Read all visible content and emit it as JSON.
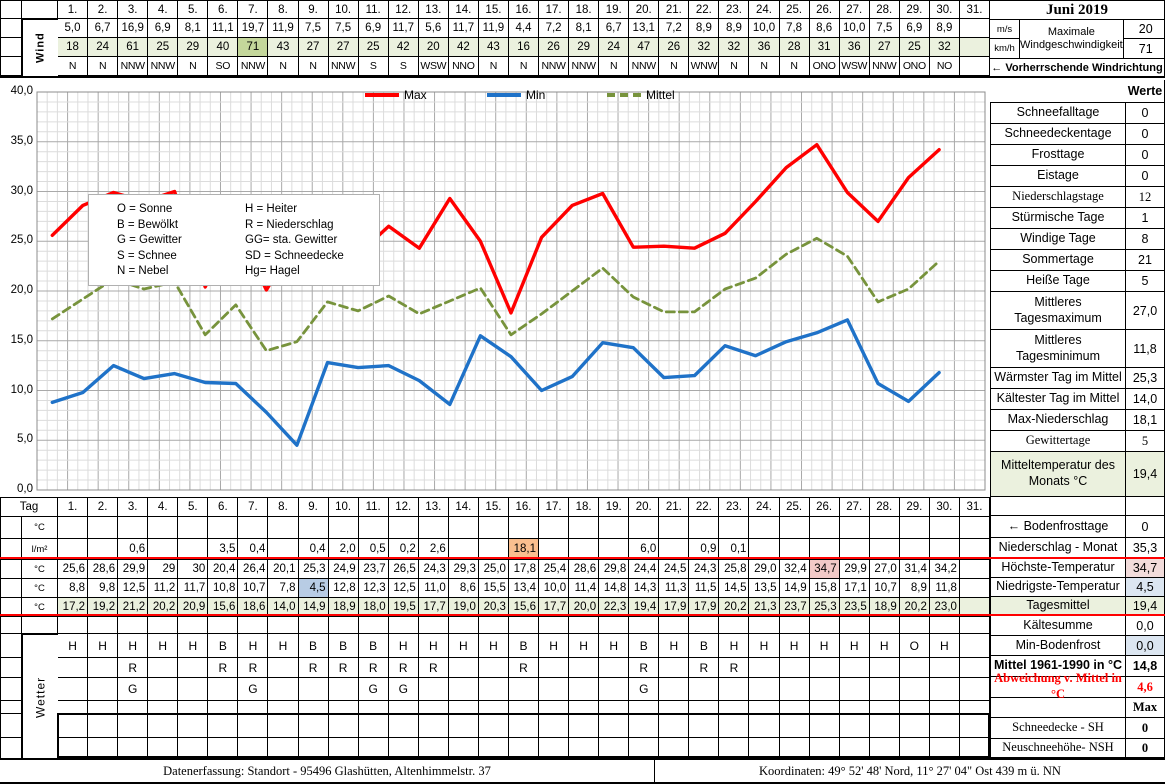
{
  "title": "Juni 2019",
  "days": [
    "1.",
    "2.",
    "3.",
    "4.",
    "5.",
    "6.",
    "7.",
    "8.",
    "9.",
    "10.",
    "11.",
    "12.",
    "13.",
    "14.",
    "15.",
    "16.",
    "17.",
    "18.",
    "19.",
    "20.",
    "21.",
    "22.",
    "23.",
    "24.",
    "25.",
    "26.",
    "27.",
    "28.",
    "29.",
    "30.",
    "31."
  ],
  "wind": {
    "row_label": "Wind",
    "ms_unit": "m/s",
    "kmh_unit": "km/h",
    "ms": [
      "5,0",
      "6,7",
      "16,9",
      "6,9",
      "8,1",
      "11,1",
      "19,7",
      "11,9",
      "7,5",
      "7,5",
      "6,9",
      "11,7",
      "5,6",
      "11,7",
      "11,9",
      "4,4",
      "7,2",
      "8,1",
      "6,7",
      "13,1",
      "7,2",
      "8,9",
      "8,9",
      "10,0",
      "7,8",
      "8,6",
      "10,0",
      "7,5",
      "6,9",
      "8,9",
      ""
    ],
    "kmh": [
      "18",
      "24",
      "61",
      "25",
      "29",
      "40",
      "71",
      "43",
      "27",
      "27",
      "25",
      "42",
      "20",
      "42",
      "43",
      "16",
      "26",
      "29",
      "24",
      "47",
      "26",
      "32",
      "32",
      "36",
      "28",
      "31",
      "36",
      "27",
      "25",
      "32",
      ""
    ],
    "dir": [
      "N",
      "N",
      "NNW",
      "NNW",
      "N",
      "SO",
      "NNW",
      "N",
      "N",
      "NNW",
      "S",
      "S",
      "WSW",
      "NNO",
      "N",
      "N",
      "NNW",
      "NNW",
      "N",
      "NNW",
      "N",
      "WNW",
      "N",
      "N",
      "N",
      "ONO",
      "WSW",
      "NNW",
      "ONO",
      "NO",
      ""
    ],
    "max_label": "Maximale Windgeschwindigkeit",
    "max_ms": "20",
    "max_kmh": "71",
    "dir_note": "← Vorherrschende Windrichtung"
  },
  "chart_data": {
    "type": "line",
    "xlabel": "Tag",
    "categories": [
      1,
      2,
      3,
      4,
      5,
      6,
      7,
      8,
      9,
      10,
      11,
      12,
      13,
      14,
      15,
      16,
      17,
      18,
      19,
      20,
      21,
      22,
      23,
      24,
      25,
      26,
      27,
      28,
      29,
      30
    ],
    "series": [
      {
        "name": "Max",
        "color": "#FF0000",
        "dash": false,
        "values": [
          25.6,
          28.6,
          29.9,
          29,
          30,
          20.4,
          26.4,
          20.1,
          25.3,
          24.9,
          23.7,
          26.5,
          24.3,
          29.3,
          25.0,
          17.8,
          25.4,
          28.6,
          29.8,
          24.4,
          24.5,
          24.3,
          25.8,
          29.0,
          32.4,
          34.7,
          29.9,
          27.0,
          31.4,
          34.2
        ]
      },
      {
        "name": "Min",
        "color": "#1F72C8",
        "dash": false,
        "values": [
          8.8,
          9.8,
          12.5,
          11.2,
          11.7,
          10.8,
          10.7,
          7.8,
          4.5,
          12.8,
          12.3,
          12.5,
          11.0,
          8.6,
          15.5,
          13.4,
          10.0,
          11.4,
          14.8,
          14.3,
          11.3,
          11.5,
          14.5,
          13.5,
          14.9,
          15.8,
          17.1,
          10.7,
          8.9,
          11.8
        ]
      },
      {
        "name": "Mittel",
        "color": "#77933C",
        "dash": true,
        "values": [
          17.2,
          19.2,
          21.2,
          20.2,
          20.9,
          15.6,
          18.6,
          14.0,
          14.9,
          18.9,
          18.0,
          19.5,
          17.7,
          19.0,
          20.3,
          15.6,
          17.7,
          20.0,
          22.3,
          19.4,
          17.9,
          17.9,
          20.2,
          21.3,
          23.7,
          25.3,
          23.5,
          18.9,
          20.2,
          23.0
        ]
      }
    ],
    "ylim": [
      0,
      40
    ],
    "ytick_step": 5,
    "ytick_labels": [
      "40,0",
      "35,0",
      "30,0",
      "25,0",
      "20,0",
      "15,0",
      "10,0",
      "5,0",
      "0,0"
    ],
    "x_days": 31,
    "legend_position": "top",
    "grid": "fine"
  },
  "legend_box": {
    "rows": [
      [
        "O = Sonne",
        "H = Heiter"
      ],
      [
        "B = Bewölkt",
        "R = Niederschlag"
      ],
      [
        "G = Gewitter",
        "GG= sta. Gewitter"
      ],
      [
        "S = Schnee",
        "SD = Schneedecke"
      ],
      [
        "N = Nebel",
        "Hg= Hagel"
      ]
    ]
  },
  "sidebar_top": {
    "rows": [
      {
        "label": "",
        "value": "Werte"
      },
      {
        "label": "Schneefalltage",
        "value": "0"
      },
      {
        "label": "Schneedeckentage",
        "value": "0"
      },
      {
        "label": "Frosttage",
        "value": "0"
      },
      {
        "label": "Eistage",
        "value": "0"
      },
      {
        "label": "Niederschlagstage",
        "value": "12"
      },
      {
        "label": "Stürmische Tage",
        "value": "1"
      },
      {
        "label": "Windige Tage",
        "value": "8"
      },
      {
        "label": "Sommertage",
        "value": "21"
      },
      {
        "label": "Heiße Tage",
        "value": "5"
      },
      {
        "label": "Mittleres Tagesmaximum",
        "value": "27,0"
      },
      {
        "label": "Mittleres Tagesminimum",
        "value": "11,8"
      },
      {
        "label": "Wärmster Tag im Mittel",
        "value": "25,3"
      },
      {
        "label": "Kältester Tag im Mittel",
        "value": "14,0"
      },
      {
        "label": "Max-Niederschlag",
        "value": "18,1"
      },
      {
        "label": "Gewittertage",
        "value": "5"
      },
      {
        "label": "Mitteltemperatur des Monats °C",
        "value": "19,4"
      }
    ]
  },
  "sidebar_bottom": {
    "rows": [
      {
        "label": "",
        "value": ""
      },
      {
        "label": "← Bodenfrosttage",
        "value": "0"
      },
      {
        "label": "Niederschlag - Monat",
        "value": "35,3"
      },
      {
        "label": "Höchste-Temperatur",
        "value": "34,7"
      },
      {
        "label": "Niedrigste-Temperatur",
        "value": "4,5"
      },
      {
        "label": "Tagesmittel",
        "value": "19,4"
      },
      {
        "label": "Kältesumme",
        "value": "0,0"
      },
      {
        "label": "Min-Bodenfrost",
        "value": "0,0"
      },
      {
        "label": "Mittel 1961-1990 in °C",
        "value": "14,8"
      },
      {
        "label": "Abweichung v. Mittel in °C",
        "value": "4,6"
      },
      {
        "label": "",
        "value": "Max"
      },
      {
        "label": "Schneedecke -  SH",
        "value": "0"
      },
      {
        "label": "Neuschneehöhe- NSH",
        "value": "0"
      }
    ]
  },
  "bottom": {
    "tag_label": "Tag",
    "unit_c": "°C",
    "unit_lm": "l/m²",
    "wetter_label": "Wetter",
    "precip": [
      "",
      "",
      "0,6",
      "",
      "",
      "3,5",
      "0,4",
      "",
      "0,4",
      "2,0",
      "0,5",
      "0,2",
      "2,6",
      "",
      "",
      "18,1",
      "",
      "",
      "",
      "6,0",
      "",
      "0,9",
      "0,1",
      "",
      "",
      "",
      "",
      "",
      "",
      "",
      ""
    ],
    "tmax": [
      "25,6",
      "28,6",
      "29,9",
      "29",
      "30",
      "20,4",
      "26,4",
      "20,1",
      "25,3",
      "24,9",
      "23,7",
      "26,5",
      "24,3",
      "29,3",
      "25,0",
      "17,8",
      "25,4",
      "28,6",
      "29,8",
      "24,4",
      "24,5",
      "24,3",
      "25,8",
      "29,0",
      "32,4",
      "34,7",
      "29,9",
      "27,0",
      "31,4",
      "34,2",
      ""
    ],
    "tmin": [
      "8,8",
      "9,8",
      "12,5",
      "11,2",
      "11,7",
      "10,8",
      "10,7",
      "7,8",
      "4,5",
      "12,8",
      "12,3",
      "12,5",
      "11,0",
      "8,6",
      "15,5",
      "13,4",
      "10,0",
      "11,4",
      "14,8",
      "14,3",
      "11,3",
      "11,5",
      "14,5",
      "13,5",
      "14,9",
      "15,8",
      "17,1",
      "10,7",
      "8,9",
      "11,8",
      ""
    ],
    "tavg": [
      "17,2",
      "19,2",
      "21,2",
      "20,2",
      "20,9",
      "15,6",
      "18,6",
      "14,0",
      "14,9",
      "18,9",
      "18,0",
      "19,5",
      "17,7",
      "19,0",
      "20,3",
      "15,6",
      "17,7",
      "20,0",
      "22,3",
      "19,4",
      "17,9",
      "17,9",
      "20,2",
      "21,3",
      "23,7",
      "25,3",
      "23,5",
      "18,9",
      "20,2",
      "23,0",
      ""
    ],
    "w1": [
      "H",
      "H",
      "H",
      "H",
      "H",
      "B",
      "H",
      "H",
      "B",
      "B",
      "B",
      "H",
      "H",
      "H",
      "H",
      "B",
      "H",
      "H",
      "H",
      "B",
      "H",
      "B",
      "H",
      "H",
      "H",
      "H",
      "H",
      "H",
      "O",
      "H",
      ""
    ],
    "w2": [
      "",
      "",
      "R",
      "",
      "",
      "R",
      "R",
      "",
      "R",
      "R",
      "R",
      "R",
      "R",
      "",
      "",
      "R",
      "",
      "",
      "",
      "R",
      "",
      "R",
      "R",
      "",
      "",
      "",
      "",
      "",
      "",
      "",
      ""
    ],
    "w3": [
      "",
      "",
      "G",
      "",
      "",
      "",
      "G",
      "",
      "",
      "",
      "G",
      "G",
      "",
      "",
      "",
      "",
      "",
      "",
      "",
      "G",
      "",
      "",
      "",
      "",
      "",
      "",
      "",
      "",
      "",
      "",
      ""
    ]
  },
  "highlights": {
    "kmh": {
      "6": "hl-green2"
    },
    "precip": {
      "15": "hl-orange"
    },
    "tmax": {
      "25": "hl-pink"
    },
    "tmin": {
      "8": "hl-blue"
    }
  },
  "colors": {
    "light_green": "#EBF1DE",
    "dark_green": "#C4D79B",
    "orange": "#FABF8F",
    "cell_blue": "#B8CCE4",
    "value_blue": "#DCE6F1",
    "cell_pink": "#F2C9C7",
    "value_pink": "#F2DCDB",
    "red": "#FF0000",
    "line_max": "#FF0000",
    "line_min": "#1F72C8",
    "line_mittel": "#77933C"
  },
  "footer": {
    "left": "Datenerfassung:  Standort -  95496  Glashütten, Altenhimmelstr. 37",
    "right": "Koordinaten:   49° 52' 48' Nord,   11° 27' 04\" Ost   439 m ü. NN"
  }
}
